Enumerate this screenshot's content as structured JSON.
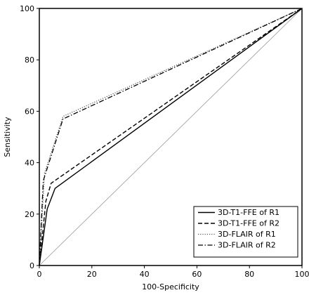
{
  "chart_data": {
    "type": "line",
    "title": "",
    "xlabel": "100-Specificity",
    "ylabel": "Sensitivity",
    "xlim": [
      0,
      100
    ],
    "ylim": [
      0,
      100
    ],
    "xticks": [
      0,
      20,
      40,
      60,
      80,
      100
    ],
    "yticks": [
      0,
      20,
      40,
      60,
      80,
      100
    ],
    "grid": false,
    "legend_position": "bottom-right",
    "reference_line": {
      "x": [
        0,
        100
      ],
      "y": [
        0,
        100
      ],
      "color": "#9a9a9a"
    },
    "series": [
      {
        "name": "3D-T1-FFE of R1",
        "style": "solid",
        "color": "#000000",
        "x": [
          0,
          3,
          6,
          100
        ],
        "y": [
          0,
          22,
          30,
          100
        ]
      },
      {
        "name": "3D-T1-FFE of R2",
        "style": "dashed",
        "color": "#000000",
        "x": [
          0,
          2.5,
          4.5,
          100
        ],
        "y": [
          0,
          25,
          32,
          100
        ]
      },
      {
        "name": "3D-FLAIR of R1",
        "style": "dotted",
        "color": "#555555",
        "x": [
          0,
          2,
          9,
          100
        ],
        "y": [
          0,
          36,
          58,
          100
        ]
      },
      {
        "name": "3D-FLAIR of R2",
        "style": "dashdot",
        "color": "#000000",
        "x": [
          0,
          1.5,
          9,
          100
        ],
        "y": [
          0,
          33,
          57,
          100
        ]
      }
    ]
  }
}
